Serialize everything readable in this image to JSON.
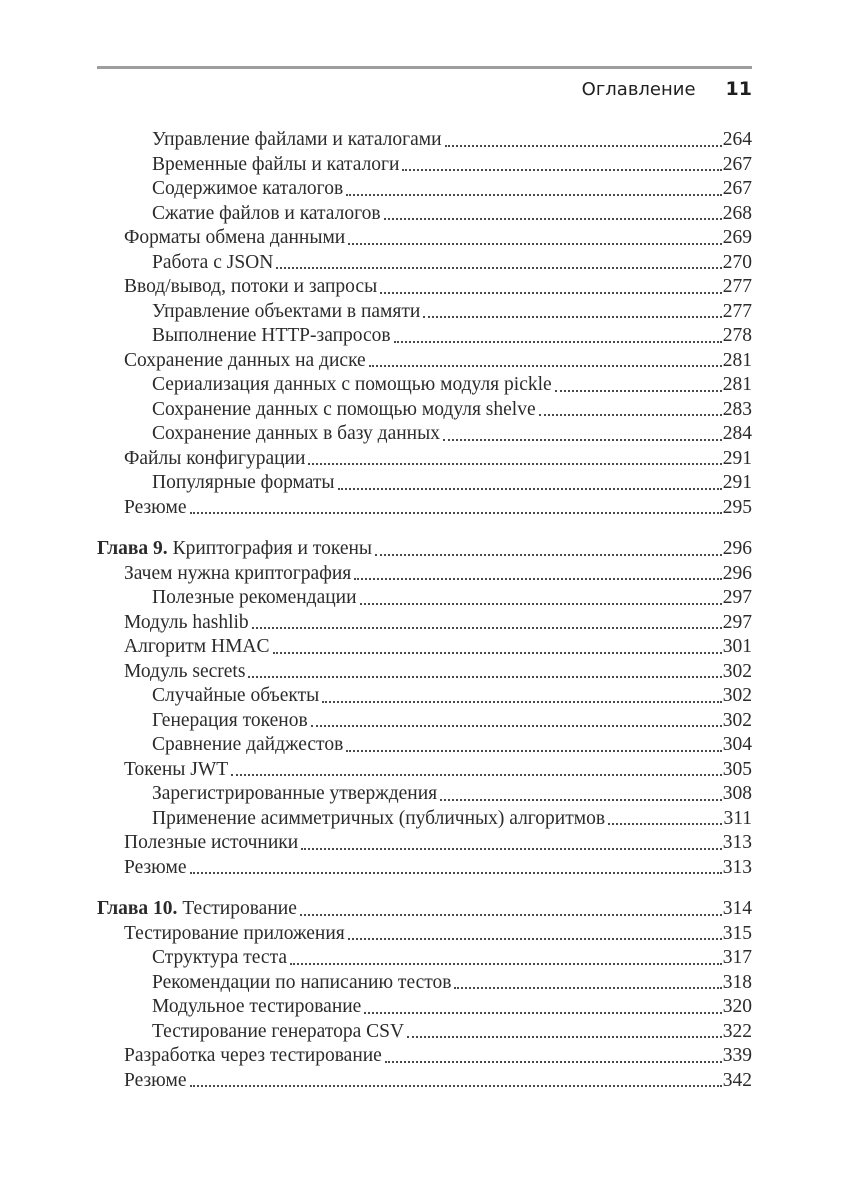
{
  "header": {
    "title": "Оглавление",
    "page_number": "11"
  },
  "colors": {
    "text": "#2b2b2b",
    "header_rule": "#9e9e9e",
    "dot_leader": "#4a4a4a",
    "background": "#ffffff"
  },
  "toc": {
    "entries": [
      {
        "level": 2,
        "label": "Управление файлами и каталогами",
        "page": "264"
      },
      {
        "level": 2,
        "label": "Временные файлы и каталоги",
        "page": "267"
      },
      {
        "level": 2,
        "label": "Содержимое каталогов",
        "page": "267"
      },
      {
        "level": 2,
        "label": "Сжатие файлов и каталогов",
        "page": "268"
      },
      {
        "level": 1,
        "label": "Форматы обмена данными",
        "page": "269"
      },
      {
        "level": 2,
        "label": "Работа с JSON",
        "page": "270"
      },
      {
        "level": 1,
        "label": "Ввод/вывод, потоки и запросы",
        "page": "277"
      },
      {
        "level": 2,
        "label": "Управление объектами в памяти",
        "page": "277"
      },
      {
        "level": 2,
        "label": "Выполнение HTTP-запросов",
        "page": "278"
      },
      {
        "level": 1,
        "label": "Сохранение данных на диске",
        "page": "281"
      },
      {
        "level": 2,
        "label": "Сериализация данных с помощью модуля pickle",
        "page": "281"
      },
      {
        "level": 2,
        "label": "Сохранение данных с помощью модуля shelve",
        "page": "283"
      },
      {
        "level": 2,
        "label": "Сохранение данных в базу данных",
        "page": "284"
      },
      {
        "level": 1,
        "label": "Файлы конфигурации",
        "page": "291"
      },
      {
        "level": 2,
        "label": "Популярные форматы",
        "page": "291"
      },
      {
        "level": 1,
        "label": "Резюме",
        "page": "295"
      },
      {
        "level": 0,
        "prefix": "Глава 9.",
        "label": "Криптография и токены",
        "page": "296",
        "chapter_break": true
      },
      {
        "level": 1,
        "label": "Зачем нужна криптография",
        "page": "296"
      },
      {
        "level": 2,
        "label": "Полезные рекомендации",
        "page": "297"
      },
      {
        "level": 1,
        "label": "Модуль hashlib",
        "page": "297"
      },
      {
        "level": 1,
        "label": "Алгоритм HMAC",
        "page": "301"
      },
      {
        "level": 1,
        "label": "Модуль secrets",
        "page": "302"
      },
      {
        "level": 2,
        "label": "Случайные объекты",
        "page": "302"
      },
      {
        "level": 2,
        "label": "Генерация токенов",
        "page": "302"
      },
      {
        "level": 2,
        "label": "Сравнение дайджестов",
        "page": "304"
      },
      {
        "level": 1,
        "label": "Токены JWT",
        "page": "305"
      },
      {
        "level": 2,
        "label": "Зарегистрированные утверждения",
        "page": "308"
      },
      {
        "level": 2,
        "label": "Применение асимметричных (публичных) алгоритмов",
        "page": "311"
      },
      {
        "level": 1,
        "label": "Полезные источники",
        "page": "313"
      },
      {
        "level": 1,
        "label": "Резюме",
        "page": "313"
      },
      {
        "level": 0,
        "prefix": "Глава 10.",
        "label": "Тестирование",
        "page": "314",
        "chapter_break": true
      },
      {
        "level": 1,
        "label": "Тестирование приложения",
        "page": "315"
      },
      {
        "level": 2,
        "label": "Структура теста",
        "page": "317"
      },
      {
        "level": 2,
        "label": "Рекомендации по написанию тестов",
        "page": "318"
      },
      {
        "level": 2,
        "label": "Модульное тестирование",
        "page": "320"
      },
      {
        "level": 2,
        "label": "Тестирование генератора CSV",
        "page": "322"
      },
      {
        "level": 1,
        "label": "Разработка через тестирование",
        "page": "339"
      },
      {
        "level": 1,
        "label": "Резюме",
        "page": "342"
      }
    ]
  }
}
